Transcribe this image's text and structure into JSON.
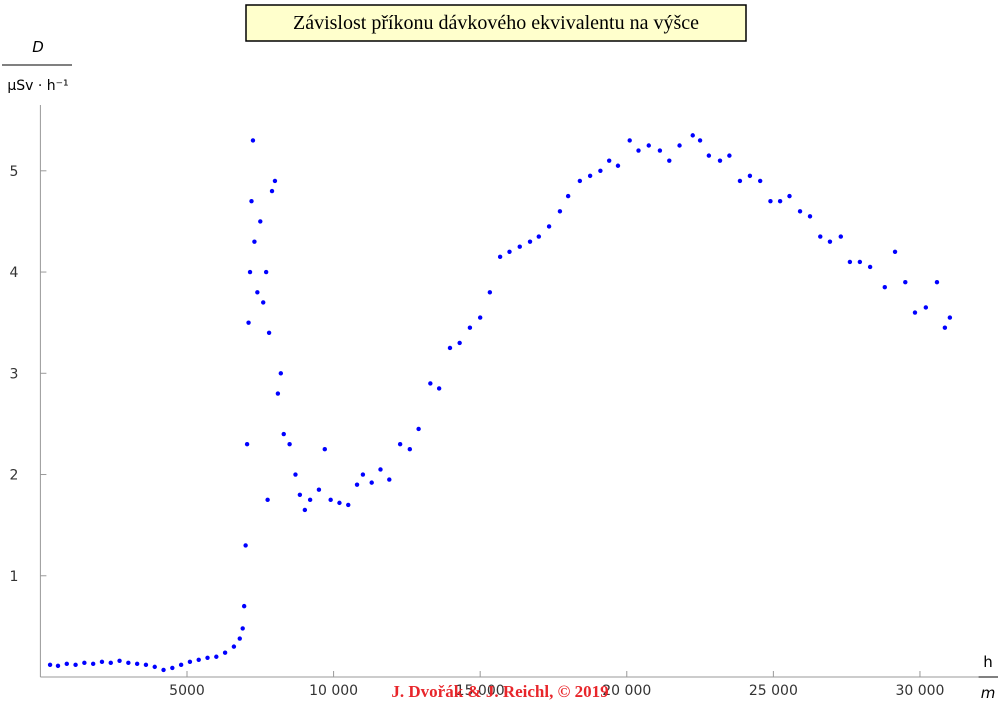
{
  "chart_data": {
    "type": "scatter",
    "title": "Závislost příkonu dávkového ekvivalentu na výšce",
    "y_label": {
      "numerator": "D",
      "denominator": "μSv · h⁻¹"
    },
    "x_label": {
      "numerator": "h",
      "denominator": "m"
    },
    "watermark": "J. Dvořák & J. Reichl, © 2019",
    "color": "#0000ff",
    "xlim": [
      0,
      32000
    ],
    "ylim": [
      0,
      5.65
    ],
    "xticks": [
      5000,
      {
        "value": 10000,
        "label": "10 000"
      },
      {
        "value": 15000,
        "label": "15 000"
      },
      {
        "value": 20000,
        "label": "20 000"
      },
      {
        "value": 25000,
        "label": "25 000"
      },
      {
        "value": 30000,
        "label": "30 000"
      }
    ],
    "yticks": [
      1,
      2,
      3,
      4,
      5
    ],
    "x": [
      330,
      600,
      900,
      1200,
      1500,
      1800,
      2100,
      2400,
      2700,
      3000,
      3300,
      3600,
      3900,
      4200,
      4500,
      4800,
      5100,
      5400,
      5700,
      6000,
      6300,
      6600,
      6800,
      6900,
      6950,
      7000,
      7050,
      7100,
      7150,
      7200,
      7250,
      7300,
      7400,
      7500,
      7600,
      7700,
      7750,
      7800,
      7900,
      8000,
      8100,
      8200,
      8300,
      8500,
      8700,
      8850,
      9020,
      9200,
      9500,
      9700,
      9900,
      10200,
      10500,
      10800,
      11000,
      11300,
      11600,
      11900,
      12270,
      12600,
      12900,
      13300,
      13600,
      13970,
      14300,
      14650,
      15000,
      15330,
      15680,
      16000,
      16350,
      16700,
      17000,
      17350,
      17720,
      18000,
      18400,
      18750,
      19100,
      19400,
      19700,
      20100,
      20400,
      20750,
      21130,
      21450,
      21800,
      22250,
      22500,
      22800,
      23180,
      23500,
      23860,
      24200,
      24550,
      24900,
      25230,
      25550,
      25910,
      26250,
      26600,
      26930,
      27300,
      27610,
      27950,
      28300,
      28800,
      29150,
      29500,
      29830,
      30200,
      30580,
      30850,
      31020
    ],
    "values": [
      0.12,
      0.11,
      0.13,
      0.12,
      0.14,
      0.13,
      0.15,
      0.14,
      0.16,
      0.14,
      0.13,
      0.12,
      0.1,
      0.07,
      0.09,
      0.12,
      0.15,
      0.17,
      0.19,
      0.2,
      0.24,
      0.3,
      0.38,
      0.48,
      0.7,
      1.3,
      2.3,
      3.5,
      4.0,
      4.7,
      5.3,
      4.3,
      3.8,
      4.5,
      3.7,
      4.0,
      1.75,
      3.4,
      4.8,
      4.9,
      2.8,
      3.0,
      2.4,
      2.3,
      2.0,
      1.8,
      1.65,
      1.75,
      1.85,
      2.25,
      1.75,
      1.72,
      1.7,
      1.9,
      2.0,
      1.92,
      2.05,
      1.95,
      2.3,
      2.25,
      2.45,
      2.9,
      2.85,
      3.25,
      3.3,
      3.45,
      3.55,
      3.8,
      4.15,
      4.2,
      4.25,
      4.3,
      4.35,
      4.45,
      4.6,
      4.75,
      4.9,
      4.95,
      5.0,
      5.1,
      5.05,
      5.3,
      5.2,
      5.25,
      5.2,
      5.1,
      5.25,
      5.35,
      5.3,
      5.15,
      5.1,
      5.15,
      4.9,
      4.95,
      4.9,
      4.7,
      4.7,
      4.75,
      4.6,
      4.55,
      4.35,
      4.3,
      4.35,
      4.1,
      4.1,
      4.05,
      3.85,
      4.2,
      3.9,
      3.6,
      3.65,
      3.9,
      3.45,
      3.55
    ]
  }
}
